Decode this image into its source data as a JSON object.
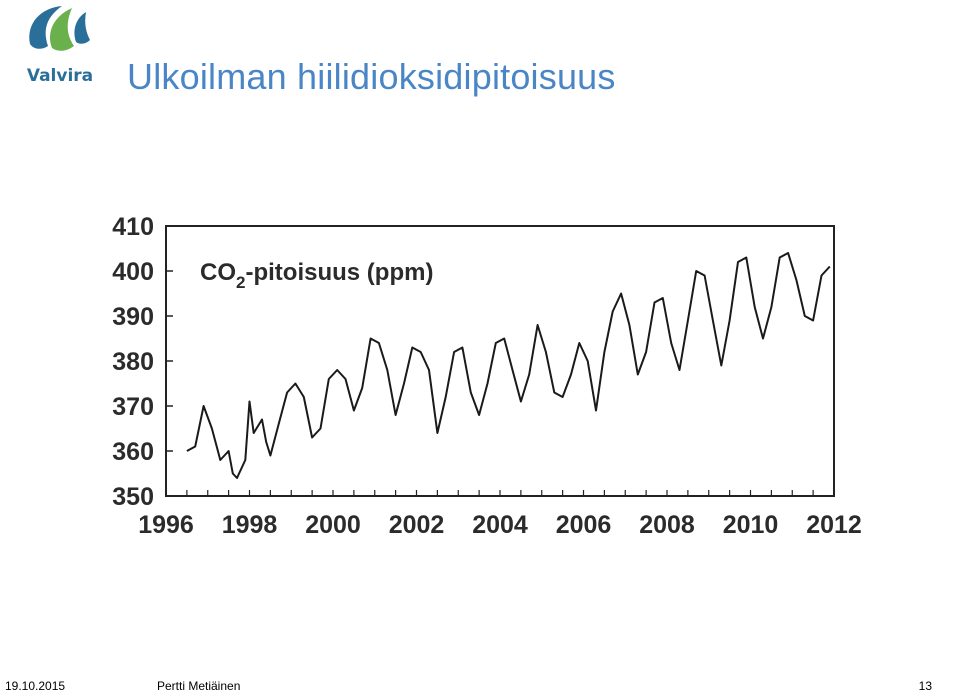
{
  "header": {
    "title": "Ulkoilman hiilidioksidipitoisuus",
    "logo_text": "Valvira",
    "logo_icon": "leaf-swoosh-icon"
  },
  "footer": {
    "date": "19.10.2015",
    "author": "Pertti Metiäinen",
    "page": "13"
  },
  "colors": {
    "title": "#4a86c6",
    "logo_blue": "#2a6f9a",
    "logo_green": "#6ab04c",
    "line": "#1a1a1a"
  },
  "chart_data": {
    "type": "line",
    "title_main": "CO",
    "title_sub": "2",
    "title_rest": "-pitoisuus (ppm)",
    "xlim": [
      1996,
      2012
    ],
    "ylim": [
      350,
      410
    ],
    "x_ticks": [
      1996,
      1998,
      2000,
      2002,
      2004,
      2006,
      2008,
      2010,
      2012
    ],
    "x_tick_labels": [
      "1996",
      "1998",
      "2000",
      "2002",
      "2004",
      "2006",
      "2008",
      "2010",
      "2012"
    ],
    "y_ticks": [
      350,
      360,
      370,
      380,
      390,
      400,
      410
    ],
    "y_tick_labels": [
      "350",
      "360",
      "370",
      "380",
      "390",
      "400",
      "410"
    ],
    "grid": false,
    "series": [
      {
        "x": [
          1996.5,
          1996.7,
          1996.9,
          1997.1,
          1997.3,
          1997.5,
          1997.6,
          1997.7,
          1997.9,
          1998.0,
          1998.1,
          1998.3,
          1998.4,
          1998.5,
          1998.7,
          1998.9,
          1999.1,
          1999.3,
          1999.5,
          1999.7,
          1999.9,
          2000.1,
          2000.3,
          2000.5,
          2000.7,
          2000.9,
          2001.1,
          2001.3,
          2001.5,
          2001.7,
          2001.9,
          2002.1,
          2002.3,
          2002.5,
          2002.7,
          2002.9,
          2003.1,
          2003.3,
          2003.5,
          2003.7,
          2003.9,
          2004.1,
          2004.3,
          2004.5,
          2004.7,
          2004.9,
          2005.1,
          2005.3,
          2005.5,
          2005.7,
          2005.9,
          2006.1,
          2006.3,
          2006.5,
          2006.7,
          2006.9,
          2007.1,
          2007.3,
          2007.5,
          2007.7,
          2007.9,
          2008.1,
          2008.3,
          2008.5,
          2008.7,
          2008.9,
          2009.1,
          2009.3,
          2009.5,
          2009.7,
          2009.9,
          2010.1,
          2010.3,
          2010.5,
          2010.7,
          2010.9,
          2011.1,
          2011.3,
          2011.5,
          2011.7,
          2011.9
        ],
        "y": [
          360,
          361,
          370,
          365,
          358,
          360,
          355,
          354,
          358,
          371,
          364,
          367,
          362,
          359,
          366,
          373,
          375,
          372,
          363,
          365,
          376,
          378,
          376,
          369,
          374,
          385,
          384,
          378,
          368,
          375,
          383,
          382,
          378,
          364,
          372,
          382,
          383,
          373,
          368,
          375,
          384,
          385,
          378,
          371,
          377,
          388,
          382,
          373,
          372,
          377,
          384,
          380,
          369,
          382,
          391,
          395,
          388,
          377,
          382,
          393,
          394,
          384,
          378,
          389,
          400,
          399,
          389,
          379,
          389,
          402,
          403,
          392,
          385,
          392,
          403,
          404,
          398,
          390,
          389,
          399,
          401
        ]
      }
    ]
  }
}
